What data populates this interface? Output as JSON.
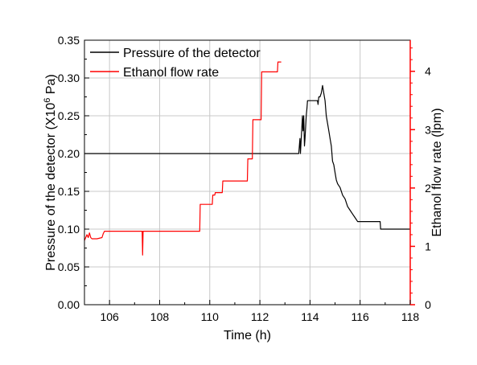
{
  "chart_data": {
    "type": "line",
    "xlabel": "Time (h)",
    "ylabel_left": {
      "prefix": "Pressure of the detector (X10",
      "superscript": "6",
      "suffix": " Pa)"
    },
    "ylabel_right": "Ethanol flow rate (lpm)",
    "xlim": [
      105,
      118
    ],
    "ylim_left": [
      0,
      0.35
    ],
    "ylim_right": [
      0,
      4.533
    ],
    "x_ticks": [
      106,
      108,
      110,
      112,
      114,
      116,
      118
    ],
    "y_ticks_left": [
      "0.00",
      "0.05",
      "0.10",
      "0.15",
      "0.20",
      "0.25",
      "0.30",
      "0.35"
    ],
    "y_ticks_right": [
      0,
      1,
      2,
      3,
      4
    ],
    "grid": true,
    "legend_position": "top-left",
    "colors": {
      "pressure": "#000000",
      "flow": "#ff0000",
      "grid": "#c8c8c8"
    },
    "series": [
      {
        "name": "Pressure of the detector",
        "axis": "left",
        "x": [
          105.0,
          113.55,
          113.6,
          113.62,
          113.7,
          113.72,
          113.75,
          113.78,
          113.8,
          113.85,
          113.88,
          113.9,
          114.3,
          114.32,
          114.35,
          114.4,
          114.45,
          114.5,
          114.55,
          114.6,
          114.65,
          114.7,
          114.75,
          114.8,
          114.85,
          114.9,
          114.95,
          115.0,
          115.05,
          115.1,
          115.2,
          115.3,
          115.4,
          115.5,
          115.6,
          115.7,
          115.8,
          115.9,
          116.0,
          116.8,
          116.82,
          118.0
        ],
        "y": [
          0.2,
          0.2,
          0.22,
          0.2,
          0.25,
          0.23,
          0.25,
          0.21,
          0.22,
          0.25,
          0.26,
          0.27,
          0.27,
          0.265,
          0.275,
          0.275,
          0.28,
          0.29,
          0.28,
          0.27,
          0.25,
          0.24,
          0.23,
          0.22,
          0.21,
          0.19,
          0.185,
          0.175,
          0.165,
          0.16,
          0.155,
          0.145,
          0.14,
          0.13,
          0.125,
          0.12,
          0.115,
          0.11,
          0.11,
          0.11,
          0.1,
          0.1
        ]
      },
      {
        "name": "Ethanol flow rate",
        "axis": "right",
        "x": [
          105.0,
          105.1,
          105.15,
          105.2,
          105.25,
          105.3,
          105.5,
          105.7,
          105.75,
          105.8,
          107.3,
          107.32,
          107.34,
          109.6,
          109.62,
          110.1,
          110.12,
          110.2,
          110.22,
          110.5,
          110.52,
          110.6,
          110.62,
          111.5,
          111.52,
          111.7,
          111.72,
          112.05,
          112.07,
          112.7,
          112.72,
          112.85
        ],
        "y": [
          1.1,
          1.2,
          1.15,
          1.23,
          1.15,
          1.13,
          1.13,
          1.15,
          1.22,
          1.26,
          1.26,
          0.85,
          1.26,
          1.26,
          1.72,
          1.72,
          1.88,
          1.88,
          1.92,
          1.92,
          2.12,
          2.12,
          2.12,
          2.12,
          2.5,
          2.5,
          3.17,
          3.17,
          3.99,
          3.99,
          4.16,
          4.16
        ]
      }
    ]
  }
}
